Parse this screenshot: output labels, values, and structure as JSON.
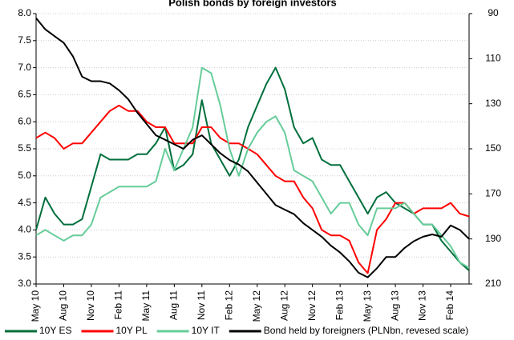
{
  "chart_data": {
    "type": "line",
    "title": "Polish bonds by foreign investors",
    "categories": [
      "May 10",
      null,
      null,
      "Aug 10",
      null,
      null,
      "Nov 10",
      null,
      null,
      "Feb 11",
      null,
      null,
      "May 11",
      null,
      null,
      "Aug 11",
      null,
      null,
      "Nov 11",
      null,
      null,
      "Feb 12",
      null,
      null,
      "May 12",
      null,
      null,
      "Aug 12",
      null,
      null,
      "Nov 12",
      null,
      null,
      "Feb 13",
      null,
      null,
      "May 13",
      null,
      null,
      "Aug 13",
      null,
      null,
      "Nov 13",
      null,
      null,
      "Feb 14",
      null,
      null
    ],
    "series": [
      {
        "name": "10Y ES",
        "color": "#006f3c",
        "values": [
          4.0,
          4.6,
          4.3,
          4.1,
          4.1,
          4.2,
          4.8,
          5.4,
          5.3,
          5.3,
          5.3,
          5.4,
          5.4,
          5.6,
          5.9,
          5.1,
          5.2,
          5.4,
          6.4,
          5.6,
          5.3,
          5.0,
          5.3,
          5.9,
          6.3,
          6.7,
          7.0,
          6.6,
          5.9,
          5.6,
          5.7,
          5.3,
          5.2,
          5.2,
          4.9,
          4.6,
          4.3,
          4.6,
          4.7,
          4.5,
          4.4,
          4.3,
          4.1,
          4.1,
          3.8,
          3.6,
          3.4,
          3.25
        ]
      },
      {
        "name": "10Y PL",
        "color": "#ff0000",
        "values": [
          5.7,
          5.8,
          5.7,
          5.5,
          5.6,
          5.6,
          5.8,
          6.0,
          6.2,
          6.3,
          6.2,
          6.2,
          6.0,
          5.9,
          5.9,
          5.6,
          5.6,
          5.6,
          5.9,
          5.9,
          5.7,
          5.6,
          5.6,
          5.5,
          5.4,
          5.2,
          5.0,
          4.9,
          4.9,
          4.6,
          4.4,
          4.0,
          3.9,
          3.9,
          3.8,
          3.4,
          3.2,
          4.0,
          4.2,
          4.5,
          4.5,
          4.3,
          4.4,
          4.4,
          4.4,
          4.5,
          4.3,
          4.25
        ]
      },
      {
        "name": "10Y IT",
        "color": "#66cc99",
        "values": [
          3.9,
          4.0,
          3.9,
          3.8,
          3.9,
          3.9,
          4.1,
          4.6,
          4.7,
          4.8,
          4.8,
          4.8,
          4.8,
          4.9,
          5.5,
          5.1,
          5.5,
          5.9,
          7.0,
          6.9,
          6.3,
          5.5,
          5.0,
          5.5,
          5.8,
          6.0,
          6.1,
          5.8,
          5.1,
          5.0,
          4.9,
          4.6,
          4.3,
          4.5,
          4.5,
          4.1,
          3.9,
          4.4,
          4.4,
          4.4,
          4.5,
          4.3,
          4.1,
          4.1,
          3.9,
          3.7,
          3.4,
          3.3
        ]
      },
      {
        "name": "Bond held by foreigners (PLNbn, revesed scale)",
        "color": "#000000",
        "axis": "y2",
        "values": [
          92,
          97,
          100,
          103,
          109,
          118,
          120,
          120,
          121,
          124,
          128,
          134,
          139,
          144,
          146,
          148,
          150,
          146,
          144,
          148,
          152,
          155,
          157,
          160,
          165,
          170,
          175,
          177,
          179,
          183,
          186,
          189,
          193,
          196,
          200,
          205,
          207,
          203,
          198,
          198,
          194,
          191,
          189,
          188,
          189,
          184,
          186,
          190
        ]
      }
    ],
    "ylim": [
      3,
      8
    ],
    "yticks": [
      {
        "value": 3,
        "label": "3.0"
      },
      3.5,
      {
        "value": 4,
        "label": "4.0"
      },
      4.5,
      {
        "value": 5,
        "label": "5.0"
      },
      5.5,
      {
        "value": 6,
        "label": "6.0"
      },
      6.5,
      {
        "value": 7,
        "label": "7.0"
      },
      7.5,
      {
        "value": 8,
        "label": "8.0"
      }
    ],
    "y2lim": [
      210,
      90
    ],
    "y2ticks": [
      90,
      110,
      130,
      150,
      170,
      190,
      210
    ],
    "grid": true,
    "legend": "bottom"
  }
}
